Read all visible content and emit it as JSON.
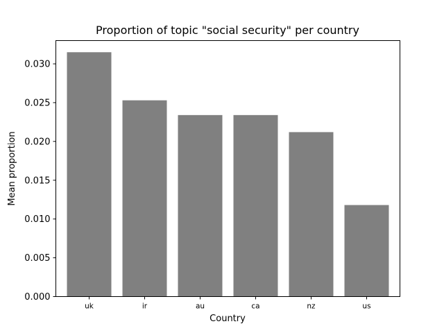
{
  "chart_data": {
    "type": "bar",
    "title": "Proportion of topic \"social security\" per country",
    "xlabel": "Country",
    "ylabel": "Mean proportion",
    "categories": [
      "uk",
      "ir",
      "au",
      "ca",
      "nz",
      "us"
    ],
    "values": [
      0.0315,
      0.0253,
      0.0234,
      0.0234,
      0.0212,
      0.0118
    ],
    "ylim": [
      0,
      0.033
    ],
    "yticks": [
      0.0,
      0.005,
      0.01,
      0.015,
      0.02,
      0.025,
      0.03
    ],
    "ytick_labels": [
      "0.000",
      "0.005",
      "0.010",
      "0.015",
      "0.020",
      "0.025",
      "0.030"
    ],
    "bar_color": "#808080",
    "grid": false,
    "legend": "none"
  }
}
